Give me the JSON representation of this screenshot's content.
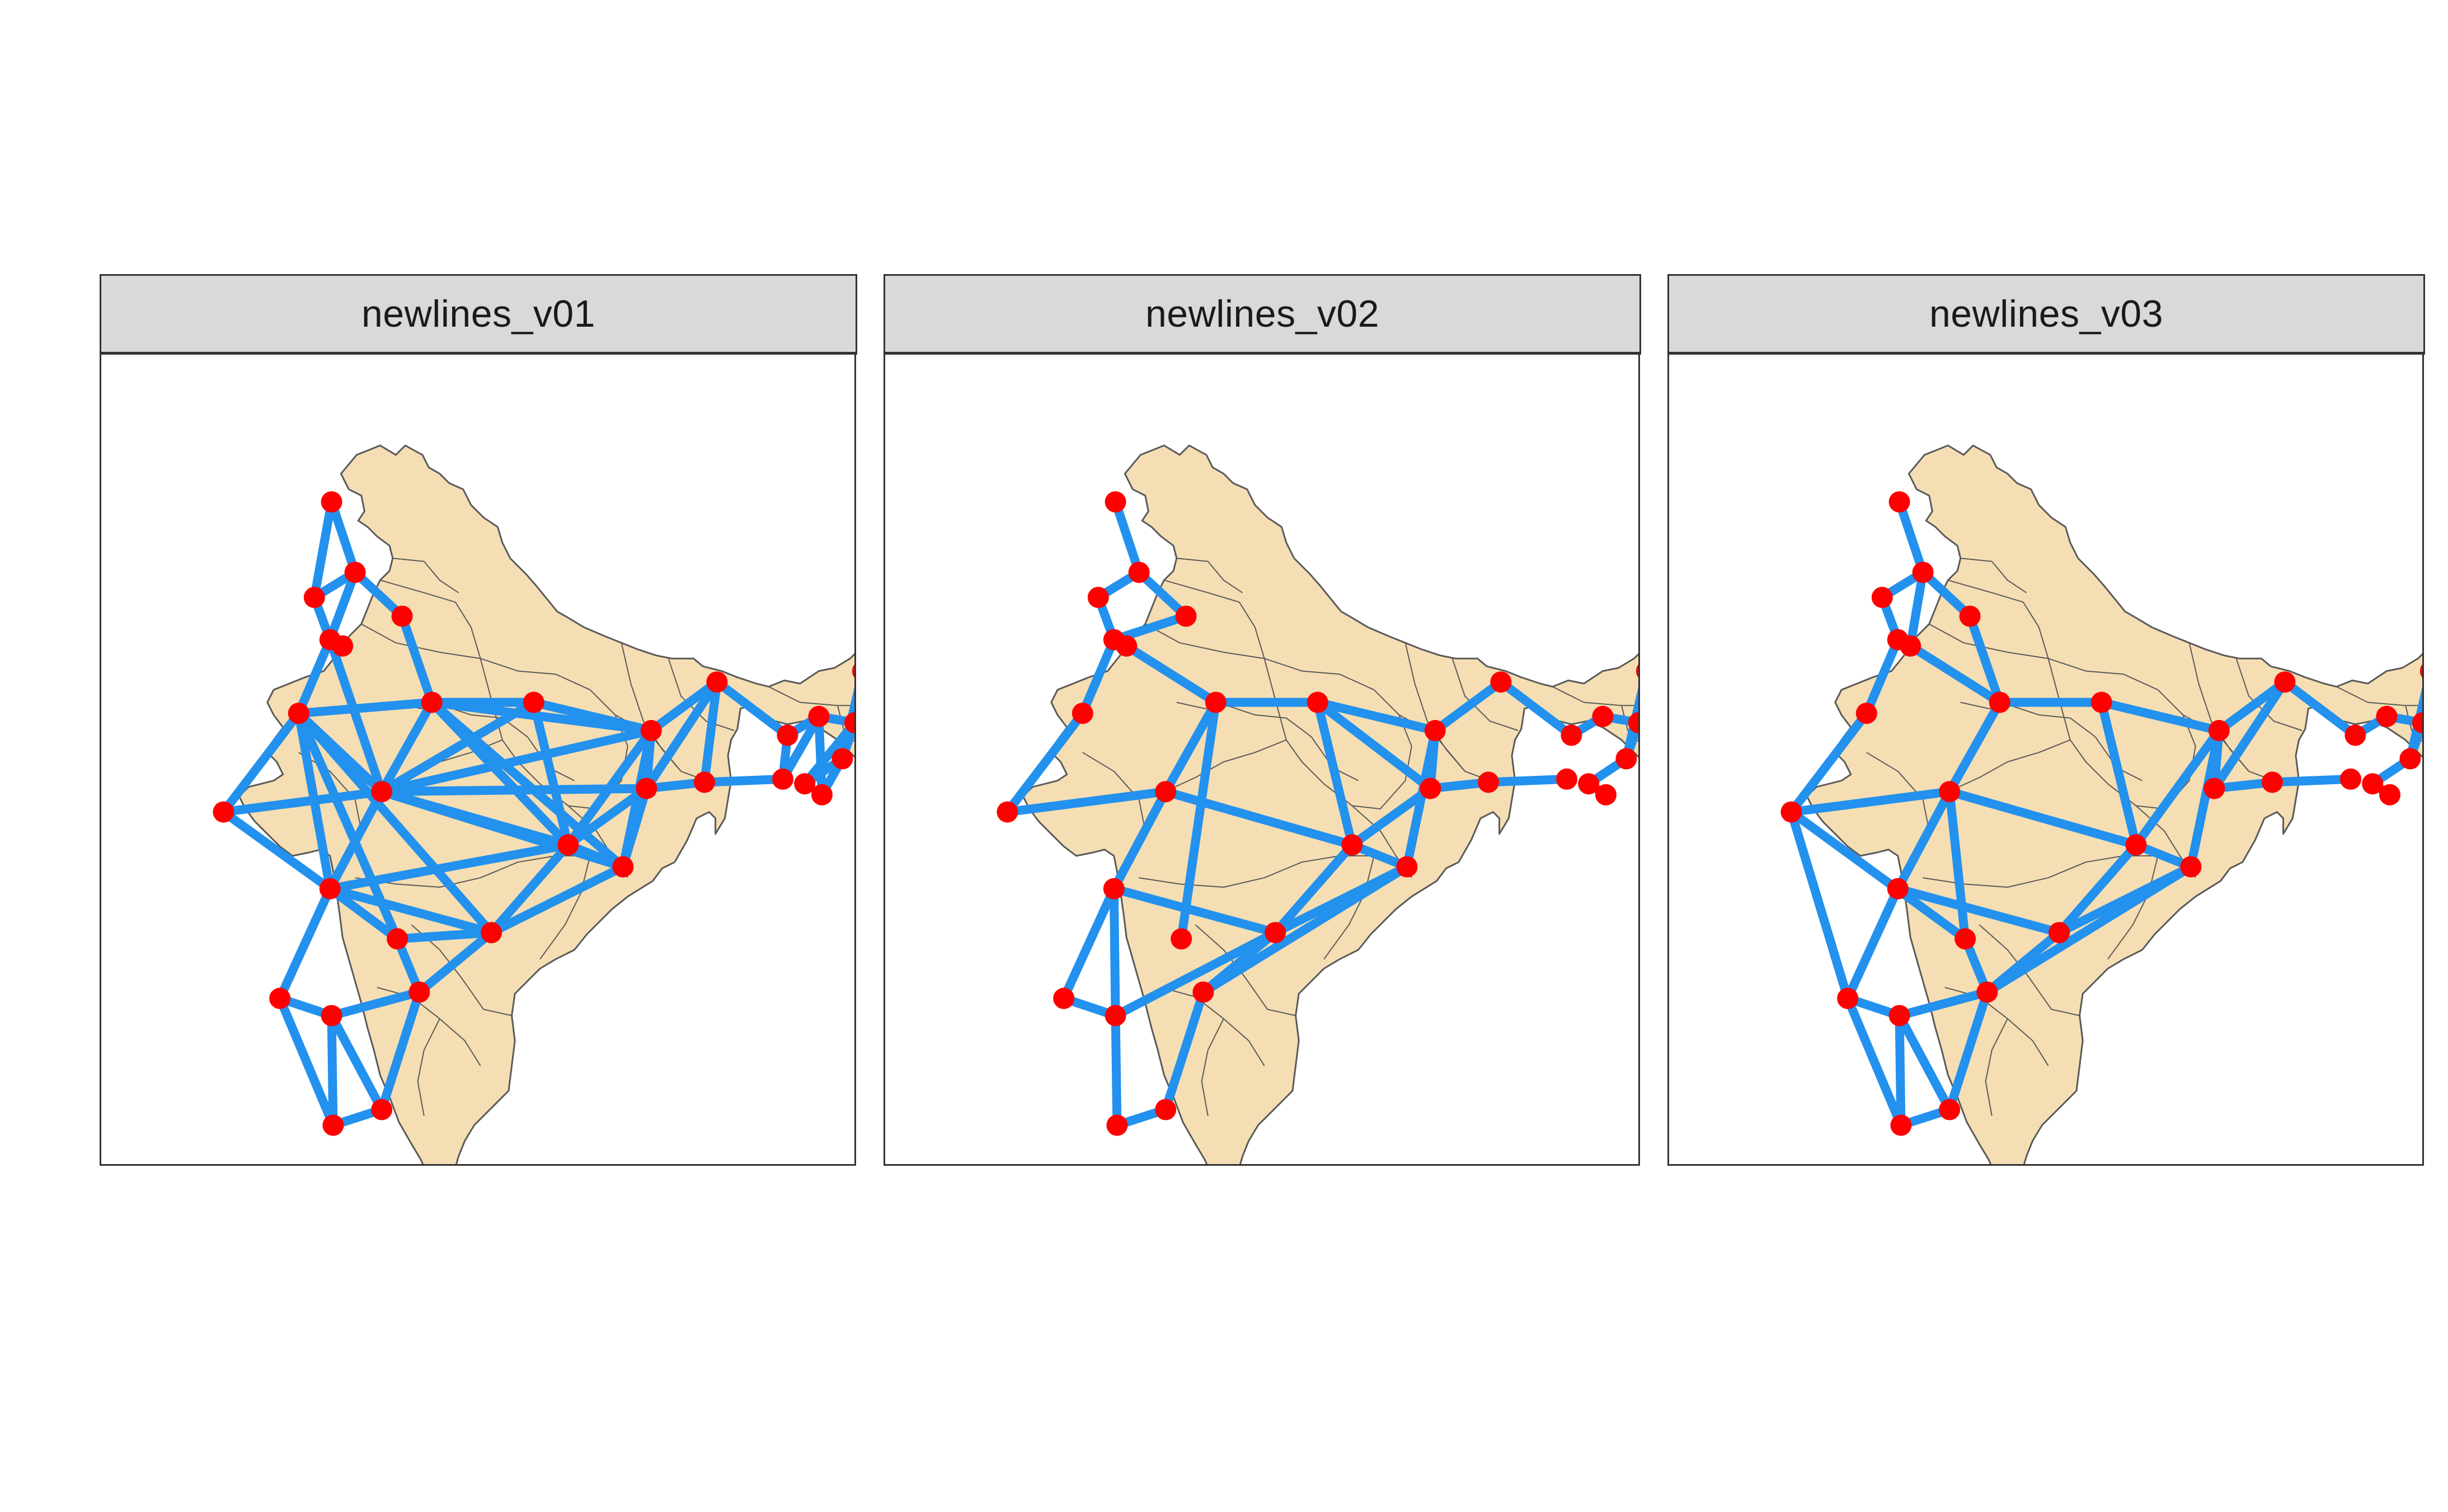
{
  "colors": {
    "land": "#f5deb3",
    "border": "#5a5a5a",
    "network_line": "#2391ee",
    "node": "#ff0000",
    "strip_background": "#d9d9d9",
    "frame": "#333333"
  },
  "panels": [
    {
      "title": "newlines_v01"
    },
    {
      "title": "newlines_v02"
    },
    {
      "title": "newlines_v03"
    }
  ]
}
